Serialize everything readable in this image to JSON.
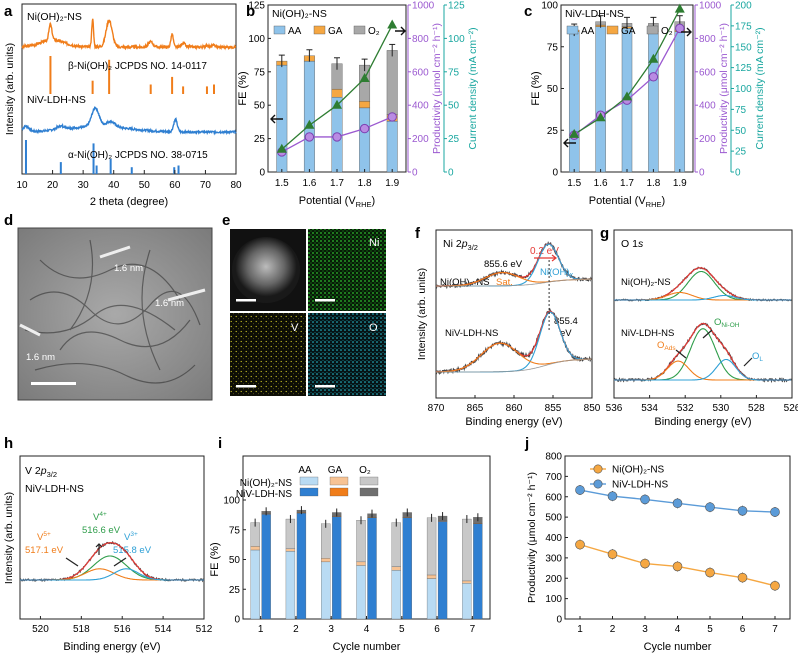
{
  "colors": {
    "orange": "#f07d1a",
    "blue": "#2f7fd1",
    "green": "#2e7d32",
    "purple": "#9b59d0",
    "teal": "#1aa7a0",
    "red": "#e53935",
    "ni_green": "#2fbf2f",
    "v_yellow": "#d6d02a",
    "o_cyan": "#29c3d6"
  },
  "panels": {
    "a": "a",
    "b": "b",
    "c": "c",
    "d": "d",
    "e": "e",
    "f": "f",
    "g": "g",
    "h": "h",
    "i": "i",
    "j": "j"
  },
  "chart_data": [
    {
      "id": "a",
      "type": "line",
      "title": "",
      "xlabel": "2 theta (degree)",
      "ylabel": "Intensity (arb. units)",
      "xlim": [
        10,
        80
      ],
      "xticks": [
        "10",
        "20",
        "30",
        "40",
        "50",
        "60",
        "70",
        "80"
      ],
      "series": [
        {
          "name": "Ni(OH)2-NS",
          "label": "Ni(OH)₂-NS",
          "ref": "β-Ni(OH)₂ JCPDS NO. 14-0117",
          "color": "#f07d1a",
          "peaks": [
            19.3,
            33.1,
            38.5,
            52.1,
            59.1,
            62.7,
            70.5,
            72.8
          ]
        },
        {
          "name": "NiV-LDH-NS",
          "label": "NiV-LDH-NS",
          "ref": "α-Ni(OH)₂ JCPDS NO. 38-0715",
          "color": "#2f7fd1",
          "peaks": [
            11.3,
            22.7,
            33.4,
            34.4,
            39.0,
            45.9,
            59.8,
            61.2
          ]
        }
      ]
    },
    {
      "id": "b",
      "type": "bar",
      "title": "Ni(OH)₂-NS",
      "xlabel": "Potential (V RHE)",
      "xlabel_main": "Potential (V",
      "xlabel_sub": "RHE",
      "xlabel_end": ")",
      "ylabel": "FE (%)",
      "ylabel2": "Productivity (μmol cm⁻² h⁻¹)",
      "ylabel3": "Current density (mA cm⁻²)",
      "categories": [
        "1.5",
        "1.6",
        "1.7",
        "1.8",
        "1.9"
      ],
      "ylim": [
        0,
        125
      ],
      "yticks": [
        "0",
        "25",
        "50",
        "75",
        "100",
        "125"
      ],
      "y2lim": [
        0,
        1000
      ],
      "y2ticks": [
        "0",
        "200",
        "400",
        "600",
        "800",
        "1000"
      ],
      "y3lim": [
        0,
        125
      ],
      "y3ticks": [
        "0",
        "25",
        "50",
        "75",
        "100",
        "125"
      ],
      "legend": [
        "AA",
        "GA",
        "O₂"
      ],
      "series": [
        {
          "name": "AA",
          "values": [
            80,
            83,
            56,
            48,
            38
          ]
        },
        {
          "name": "GA",
          "values": [
            3,
            4,
            6,
            5,
            5
          ]
        },
        {
          "name": "O2",
          "values": [
            0,
            0,
            19,
            27,
            48
          ]
        }
      ],
      "productivity": [
        120,
        210,
        210,
        260,
        330
      ],
      "current_density": [
        17,
        35,
        50,
        70,
        110
      ]
    },
    {
      "id": "c",
      "type": "bar",
      "title": "NiV-LDH-NS",
      "xlabel_main": "Potential (V",
      "xlabel_sub": "RHE",
      "xlabel_end": ")",
      "ylabel": "FE (%)",
      "ylabel2": "Productivity (μmol cm⁻² h⁻¹)",
      "ylabel3": "Current density (mA cm⁻²)",
      "categories": [
        "1.5",
        "1.6",
        "1.7",
        "1.8",
        "1.9"
      ],
      "ylim": [
        0,
        100
      ],
      "yticks": [
        "0",
        "25",
        "50",
        "75",
        "100"
      ],
      "y2lim": [
        0,
        1000
      ],
      "y2ticks": [
        "0",
        "200",
        "400",
        "600",
        "800",
        "1000"
      ],
      "y3lim": [
        0,
        200
      ],
      "y3ticks": [
        "0",
        "25",
        "50",
        "75",
        "100",
        "125",
        "150",
        "175",
        "200"
      ],
      "legend": [
        "AA",
        "GA",
        "O₂"
      ],
      "series": [
        {
          "name": "AA",
          "values": [
            84,
            87,
            86,
            84,
            84
          ]
        },
        {
          "name": "GA",
          "values": [
            1,
            1,
            1,
            1,
            1
          ]
        },
        {
          "name": "O2",
          "values": [
            0,
            2,
            2,
            4,
            5
          ]
        }
      ],
      "productivity": [
        220,
        340,
        430,
        570,
        860
      ],
      "current_density": [
        45,
        65,
        90,
        135,
        195
      ]
    },
    {
      "id": "f",
      "type": "line",
      "title": "Ni 2p3/2",
      "xlabel": "Binding energy (eV)",
      "ylabel": "Intensity (arb. units)",
      "xlim": [
        870,
        850
      ],
      "xticks": [
        "870",
        "865",
        "860",
        "855",
        "850"
      ],
      "annotations": [
        "855.6 eV",
        "0.2 eV",
        "Ni(OH)x",
        "Sat.",
        "855.4 eV"
      ],
      "series": [
        {
          "name": "Ni(OH)2-NS",
          "label": "Ni(OH)₂-NS"
        },
        {
          "name": "NiV-LDH-NS",
          "label": "NiV-LDH-NS"
        }
      ]
    },
    {
      "id": "g",
      "type": "line",
      "title": "O 1s",
      "xlabel": "Binding energy (eV)",
      "xlim": [
        536,
        526
      ],
      "xticks": [
        "536",
        "534",
        "532",
        "530",
        "528",
        "526"
      ],
      "annotations": [
        "ONi-OH",
        "OAds",
        "OL"
      ],
      "series": [
        {
          "name": "Ni(OH)2-NS",
          "label": "Ni(OH)₂-NS"
        },
        {
          "name": "NiV-LDH-NS",
          "label": "NiV-LDH-NS"
        }
      ]
    },
    {
      "id": "h",
      "type": "line",
      "title": "V 2p3/2",
      "subtitle": "NiV-LDH-NS",
      "xlabel": "Binding energy (eV)",
      "ylabel": "Intensity (arb. units)",
      "xlim": [
        521,
        512
      ],
      "xticks": [
        "520",
        "518",
        "516",
        "514",
        "512"
      ],
      "annotations": [
        {
          "label": "V5+",
          "value": "517.1 eV"
        },
        {
          "label": "V4+",
          "value": "516.6 eV"
        },
        {
          "label": "V3+",
          "value": "515.8 eV"
        }
      ]
    },
    {
      "id": "i",
      "type": "bar",
      "xlabel": "Cycle number",
      "ylabel": "FE (%)",
      "categories": [
        "1",
        "2",
        "3",
        "4",
        "5",
        "6",
        "7"
      ],
      "ylim": [
        0,
        100
      ],
      "yticks": [
        "0",
        "25",
        "50",
        "75",
        "100"
      ],
      "legend_cols": [
        "AA",
        "GA",
        "O₂"
      ],
      "legend_rows": [
        "Ni(OH)₂-NS",
        "NiV-LDH-NS"
      ],
      "series": [
        {
          "name": "Ni(OH)2-NS AA",
          "values": [
            58,
            57,
            48,
            45,
            41,
            34,
            30
          ]
        },
        {
          "name": "Ni(OH)2-NS GA",
          "values": [
            3,
            2,
            3,
            3,
            3,
            3,
            2
          ]
        },
        {
          "name": "Ni(OH)2-NS O2",
          "values": [
            20,
            25,
            29,
            35,
            37,
            48,
            52
          ]
        },
        {
          "name": "NiV-LDH-NS AA",
          "values": [
            88,
            89,
            86,
            85,
            85,
            82,
            80
          ]
        },
        {
          "name": "NiV-LDH-NS GA",
          "values": [
            0.5,
            0.5,
            0.5,
            0.5,
            0.5,
            0.5,
            0.5
          ]
        },
        {
          "name": "NiV-LDH-NS O2",
          "values": [
            2,
            2,
            3,
            3,
            4,
            4,
            5
          ]
        }
      ]
    },
    {
      "id": "j",
      "type": "line",
      "xlabel": "Cycle number",
      "ylabel": "Productivity (μmol cm⁻² h⁻¹)",
      "x": [
        1,
        2,
        3,
        4,
        5,
        6,
        7
      ],
      "xticks": [
        "1",
        "2",
        "3",
        "4",
        "5",
        "6",
        "7"
      ],
      "ylim": [
        0,
        800
      ],
      "yticks": [
        "0",
        "100",
        "200",
        "300",
        "400",
        "500",
        "600",
        "700",
        "800"
      ],
      "legend": [
        "Ni(OH)₂-NS",
        "NiV-LDH-NS"
      ],
      "series": [
        {
          "name": "Ni(OH)2-NS",
          "values": [
            365,
            318,
            272,
            258,
            228,
            203,
            163
          ],
          "color": "#f5a742"
        },
        {
          "name": "NiV-LDH-NS",
          "values": [
            633,
            603,
            587,
            568,
            549,
            531,
            525
          ],
          "color": "#5b9bd8"
        }
      ]
    }
  ],
  "images": {
    "d": {
      "scale_labels": [
        "1.6 nm",
        "1.6 nm",
        "1.6 nm"
      ]
    },
    "e": {
      "channels": [
        "Ni",
        "V",
        "O"
      ]
    }
  }
}
